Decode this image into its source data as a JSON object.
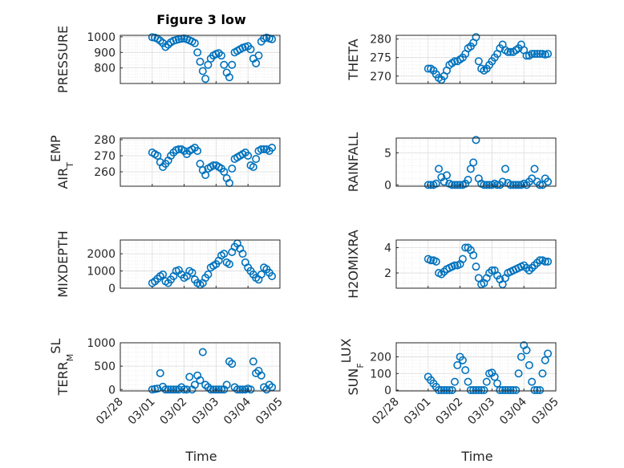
{
  "figure": {
    "title": "Figure 3 low",
    "xlabel": "Time"
  },
  "colors": {
    "marker": "#0072BD",
    "axis": "#262626",
    "grid": "#dcdcdc",
    "minorgrid": "#ececec"
  },
  "chart_data": [
    {
      "type": "scatter",
      "ylabel": "PRESSURE",
      "ylabel_sub": "",
      "ylabel_tail": "",
      "ylim": [
        700,
        1010
      ],
      "yticks": [
        800,
        900,
        1000
      ],
      "grid": true,
      "x": [
        "03/01 00:00",
        "03/01 02:00",
        "03/01 04:00",
        "03/01 06:00",
        "03/01 08:00",
        "03/01 10:00",
        "03/01 12:00",
        "03/01 14:00",
        "03/01 16:00",
        "03/01 18:00",
        "03/01 20:00",
        "03/01 22:00",
        "03/02 00:00",
        "03/02 02:00",
        "03/02 04:00",
        "03/02 06:00",
        "03/02 08:00",
        "03/02 10:00",
        "03/02 12:00",
        "03/02 14:00",
        "03/02 16:00",
        "03/02 18:00",
        "03/02 20:00",
        "03/02 22:00",
        "03/03 00:00",
        "03/03 02:00",
        "03/03 04:00",
        "03/03 06:00",
        "03/03 08:00",
        "03/03 10:00",
        "03/03 12:00",
        "03/03 14:00",
        "03/03 16:00",
        "03/03 18:00",
        "03/03 20:00",
        "03/03 22:00",
        "03/04 00:00",
        "03/04 02:00",
        "03/04 04:00",
        "03/04 06:00",
        "03/04 08:00",
        "03/04 10:00",
        "03/04 12:00",
        "03/04 14:00",
        "03/04 16:00",
        "03/04 18:00"
      ],
      "values": [
        998,
        995,
        988,
        975,
        960,
        935,
        950,
        965,
        975,
        980,
        985,
        988,
        990,
        985,
        978,
        970,
        960,
        900,
        840,
        780,
        730,
        820,
        860,
        880,
        890,
        895,
        880,
        820,
        770,
        740,
        820,
        900,
        910,
        920,
        930,
        935,
        940,
        920,
        860,
        830,
        880,
        970,
        990,
        995,
        990,
        985
      ]
    },
    {
      "type": "scatter",
      "ylabel": "THETA",
      "ylabel_sub": "",
      "ylabel_tail": "",
      "ylim": [
        268,
        281
      ],
      "yticks": [
        270,
        275,
        280
      ],
      "grid": true,
      "x": [
        "03/01 00:00",
        "03/01 02:00",
        "03/01 04:00",
        "03/01 06:00",
        "03/01 08:00",
        "03/01 10:00",
        "03/01 12:00",
        "03/01 14:00",
        "03/01 16:00",
        "03/01 18:00",
        "03/01 20:00",
        "03/01 22:00",
        "03/02 00:00",
        "03/02 02:00",
        "03/02 04:00",
        "03/02 06:00",
        "03/02 08:00",
        "03/02 10:00",
        "03/02 12:00",
        "03/02 14:00",
        "03/02 16:00",
        "03/02 18:00",
        "03/02 20:00",
        "03/02 22:00",
        "03/03 00:00",
        "03/03 02:00",
        "03/03 04:00",
        "03/03 06:00",
        "03/03 08:00",
        "03/03 10:00",
        "03/03 12:00",
        "03/03 14:00",
        "03/03 16:00",
        "03/03 18:00",
        "03/03 20:00",
        "03/03 22:00",
        "03/04 00:00",
        "03/04 02:00",
        "03/04 04:00",
        "03/04 06:00",
        "03/04 08:00",
        "03/04 10:00",
        "03/04 12:00",
        "03/04 14:00",
        "03/04 16:00",
        "03/04 18:00"
      ],
      "values": [
        272,
        272,
        271.5,
        270.5,
        269.5,
        269,
        270,
        271.5,
        273,
        273.5,
        274,
        274,
        274.5,
        275,
        276,
        277.5,
        278,
        279,
        280.5,
        274,
        272,
        271.5,
        272,
        273,
        274,
        275,
        276,
        277.5,
        278.5,
        277,
        276.5,
        276.5,
        276.5,
        277,
        277.5,
        278.5,
        277,
        275.5,
        275.5,
        276,
        276,
        276,
        276,
        276,
        275.8,
        276
      ]
    },
    {
      "type": "scatter",
      "ylabel": "AIR",
      "ylabel_sub": "T",
      "ylabel_tail": "EMP",
      "ylim": [
        251,
        281
      ],
      "yticks": [
        260,
        270,
        280
      ],
      "grid": true,
      "x": [
        "03/01 00:00",
        "03/01 02:00",
        "03/01 04:00",
        "03/01 06:00",
        "03/01 08:00",
        "03/01 10:00",
        "03/01 12:00",
        "03/01 14:00",
        "03/01 16:00",
        "03/01 18:00",
        "03/01 20:00",
        "03/01 22:00",
        "03/02 00:00",
        "03/02 02:00",
        "03/02 04:00",
        "03/02 06:00",
        "03/02 08:00",
        "03/02 10:00",
        "03/02 12:00",
        "03/02 14:00",
        "03/02 16:00",
        "03/02 18:00",
        "03/02 20:00",
        "03/02 22:00",
        "03/03 00:00",
        "03/03 02:00",
        "03/03 04:00",
        "03/03 06:00",
        "03/03 08:00",
        "03/03 10:00",
        "03/03 12:00",
        "03/03 14:00",
        "03/03 16:00",
        "03/03 18:00",
        "03/03 20:00",
        "03/03 22:00",
        "03/04 00:00",
        "03/04 02:00",
        "03/04 04:00",
        "03/04 06:00",
        "03/04 08:00",
        "03/04 10:00",
        "03/04 12:00",
        "03/04 14:00",
        "03/04 16:00",
        "03/04 18:00"
      ],
      "values": [
        272,
        271,
        270,
        266,
        263,
        265,
        267,
        270,
        272,
        273.5,
        274,
        274,
        273,
        271,
        273,
        274,
        275,
        273,
        265,
        261,
        258,
        262,
        263,
        264,
        264,
        263,
        262,
        260,
        256,
        253,
        262,
        268,
        269,
        270,
        271,
        272,
        270,
        264,
        263,
        268,
        273,
        274,
        274,
        274,
        273,
        275
      ]
    },
    {
      "type": "scatter",
      "ylabel": "RAINFALL",
      "ylabel_sub": "",
      "ylabel_tail": "",
      "ylim": [
        -0.2,
        7.3
      ],
      "yticks": [
        0,
        5
      ],
      "grid": true,
      "x": [
        "03/01 00:00",
        "03/01 02:00",
        "03/01 04:00",
        "03/01 06:00",
        "03/01 08:00",
        "03/01 10:00",
        "03/01 12:00",
        "03/01 14:00",
        "03/01 16:00",
        "03/01 18:00",
        "03/01 20:00",
        "03/01 22:00",
        "03/02 00:00",
        "03/02 02:00",
        "03/02 04:00",
        "03/02 06:00",
        "03/02 08:00",
        "03/02 10:00",
        "03/02 12:00",
        "03/02 14:00",
        "03/02 16:00",
        "03/02 18:00",
        "03/02 20:00",
        "03/02 22:00",
        "03/03 00:00",
        "03/03 02:00",
        "03/03 04:00",
        "03/03 06:00",
        "03/03 08:00",
        "03/03 10:00",
        "03/03 12:00",
        "03/03 14:00",
        "03/03 16:00",
        "03/03 18:00",
        "03/03 20:00",
        "03/03 22:00",
        "03/04 00:00",
        "03/04 02:00",
        "03/04 04:00",
        "03/04 06:00",
        "03/04 08:00",
        "03/04 10:00",
        "03/04 12:00",
        "03/04 14:00",
        "03/04 16:00",
        "03/04 18:00"
      ],
      "values": [
        0,
        0,
        0,
        0.2,
        2.5,
        1.2,
        0.5,
        1.5,
        0.2,
        0,
        0,
        0,
        0,
        0,
        0.2,
        0.8,
        2.5,
        3.5,
        7,
        1,
        0.2,
        0,
        0,
        0,
        0,
        0.2,
        0,
        0,
        0.5,
        2.5,
        0.3,
        0,
        0,
        0,
        0,
        0,
        0.2,
        0,
        0.5,
        1,
        2.5,
        0.5,
        0,
        0,
        1,
        0.5
      ]
    },
    {
      "type": "scatter",
      "ylabel": "MIXDEPTH",
      "ylabel_sub": "",
      "ylabel_tail": "",
      "ylim": [
        0,
        2800
      ],
      "yticks": [
        0,
        1000,
        2000
      ],
      "grid": true,
      "x": [
        "03/01 00:00",
        "03/01 02:00",
        "03/01 04:00",
        "03/01 06:00",
        "03/01 08:00",
        "03/01 10:00",
        "03/01 12:00",
        "03/01 14:00",
        "03/01 16:00",
        "03/01 18:00",
        "03/01 20:00",
        "03/01 22:00",
        "03/02 00:00",
        "03/02 02:00",
        "03/02 04:00",
        "03/02 06:00",
        "03/02 08:00",
        "03/02 10:00",
        "03/02 12:00",
        "03/02 14:00",
        "03/02 16:00",
        "03/02 18:00",
        "03/02 20:00",
        "03/02 22:00",
        "03/03 00:00",
        "03/03 02:00",
        "03/03 04:00",
        "03/03 06:00",
        "03/03 08:00",
        "03/03 10:00",
        "03/03 12:00",
        "03/03 14:00",
        "03/03 16:00",
        "03/03 18:00",
        "03/03 20:00",
        "03/03 22:00",
        "03/04 00:00",
        "03/04 02:00",
        "03/04 04:00",
        "03/04 06:00",
        "03/04 08:00",
        "03/04 10:00",
        "03/04 12:00",
        "03/04 14:00",
        "03/04 16:00",
        "03/04 18:00"
      ],
      "values": [
        300,
        400,
        550,
        700,
        800,
        400,
        300,
        500,
        700,
        1000,
        1050,
        800,
        600,
        700,
        1000,
        900,
        500,
        300,
        200,
        300,
        600,
        800,
        1200,
        1300,
        1400,
        1600,
        1900,
        2000,
        1500,
        1400,
        2100,
        2400,
        2600,
        2300,
        2000,
        1500,
        1200,
        1000,
        800,
        600,
        500,
        800,
        1200,
        1100,
        900,
        700
      ]
    },
    {
      "type": "scatter",
      "ylabel": "H2OMIXRA",
      "ylabel_sub": "",
      "ylabel_tail": "",
      "ylim": [
        0.8,
        4.6
      ],
      "yticks": [
        2,
        4
      ],
      "grid": true,
      "x": [
        "03/01 00:00",
        "03/01 02:00",
        "03/01 04:00",
        "03/01 06:00",
        "03/01 08:00",
        "03/01 10:00",
        "03/01 12:00",
        "03/01 14:00",
        "03/01 16:00",
        "03/01 18:00",
        "03/01 20:00",
        "03/01 22:00",
        "03/02 00:00",
        "03/02 02:00",
        "03/02 04:00",
        "03/02 06:00",
        "03/02 08:00",
        "03/02 10:00",
        "03/02 12:00",
        "03/02 14:00",
        "03/02 16:00",
        "03/02 18:00",
        "03/02 20:00",
        "03/02 22:00",
        "03/03 00:00",
        "03/03 02:00",
        "03/03 04:00",
        "03/03 06:00",
        "03/03 08:00",
        "03/03 10:00",
        "03/03 12:00",
        "03/03 14:00",
        "03/03 16:00",
        "03/03 18:00",
        "03/03 20:00",
        "03/03 22:00",
        "03/04 00:00",
        "03/04 02:00",
        "03/04 04:00",
        "03/04 06:00",
        "03/04 08:00",
        "03/04 10:00",
        "03/04 12:00",
        "03/04 14:00",
        "03/04 16:00",
        "03/04 18:00"
      ],
      "values": [
        3.1,
        3,
        3,
        2.9,
        2,
        1.9,
        2.1,
        2.3,
        2.4,
        2.5,
        2.6,
        2.6,
        2.7,
        3.1,
        4,
        4,
        3.8,
        3.4,
        2.5,
        1.6,
        1.1,
        1.2,
        1.6,
        2,
        2.2,
        2.2,
        1.8,
        1.5,
        1.1,
        1.6,
        2,
        2.1,
        2.2,
        2.3,
        2.4,
        2.5,
        2.6,
        2.4,
        2.2,
        2.4,
        2.6,
        2.8,
        3,
        3,
        2.9,
        2.9
      ]
    },
    {
      "type": "scatter",
      "ylabel": "TERR",
      "ylabel_sub": "M",
      "ylabel_tail": "SL",
      "ylim": [
        -30,
        1000
      ],
      "yticks": [
        0,
        500,
        1000
      ],
      "grid": true,
      "x": [
        "03/01 00:00",
        "03/01 02:00",
        "03/01 04:00",
        "03/01 06:00",
        "03/01 08:00",
        "03/01 10:00",
        "03/01 12:00",
        "03/01 14:00",
        "03/01 16:00",
        "03/01 18:00",
        "03/01 20:00",
        "03/01 22:00",
        "03/02 00:00",
        "03/02 02:00",
        "03/02 04:00",
        "03/02 06:00",
        "03/02 08:00",
        "03/02 10:00",
        "03/02 12:00",
        "03/02 14:00",
        "03/02 16:00",
        "03/02 18:00",
        "03/02 20:00",
        "03/02 22:00",
        "03/03 00:00",
        "03/03 02:00",
        "03/03 04:00",
        "03/03 06:00",
        "03/03 08:00",
        "03/03 10:00",
        "03/03 12:00",
        "03/03 14:00",
        "03/03 16:00",
        "03/03 18:00",
        "03/03 20:00",
        "03/03 22:00",
        "03/04 00:00",
        "03/04 02:00",
        "03/04 04:00",
        "03/04 06:00",
        "03/04 08:00",
        "03/04 10:00",
        "03/04 12:00",
        "03/04 14:00",
        "03/04 16:00",
        "03/04 18:00"
      ],
      "values": [
        0,
        10,
        20,
        350,
        60,
        0,
        0,
        0,
        0,
        0,
        0,
        50,
        0,
        0,
        270,
        0,
        100,
        300,
        200,
        800,
        100,
        50,
        0,
        0,
        0,
        0,
        0,
        0,
        100,
        600,
        550,
        50,
        0,
        0,
        0,
        0,
        20,
        0,
        600,
        350,
        400,
        300,
        50,
        0,
        100,
        50
      ]
    },
    {
      "type": "scatter",
      "ylabel": "SUN",
      "ylabel_sub": "F",
      "ylabel_tail": "LUX",
      "ylim": [
        -5,
        285
      ],
      "yticks": [
        0,
        100,
        200
      ],
      "grid": true,
      "x": [
        "03/01 00:00",
        "03/01 02:00",
        "03/01 04:00",
        "03/01 06:00",
        "03/01 08:00",
        "03/01 10:00",
        "03/01 12:00",
        "03/01 14:00",
        "03/01 16:00",
        "03/01 18:00",
        "03/01 20:00",
        "03/01 22:00",
        "03/02 00:00",
        "03/02 02:00",
        "03/02 04:00",
        "03/02 06:00",
        "03/02 08:00",
        "03/02 10:00",
        "03/02 12:00",
        "03/02 14:00",
        "03/02 16:00",
        "03/02 18:00",
        "03/02 20:00",
        "03/02 22:00",
        "03/03 00:00",
        "03/03 02:00",
        "03/03 04:00",
        "03/03 06:00",
        "03/03 08:00",
        "03/03 10:00",
        "03/03 12:00",
        "03/03 14:00",
        "03/03 16:00",
        "03/03 18:00",
        "03/03 20:00",
        "03/03 22:00",
        "03/04 00:00",
        "03/04 02:00",
        "03/04 04:00",
        "03/04 06:00",
        "03/04 08:00",
        "03/04 10:00",
        "03/04 12:00",
        "03/04 14:00",
        "03/04 16:00",
        "03/04 18:00"
      ],
      "values": [
        80,
        60,
        40,
        20,
        0,
        0,
        0,
        0,
        0,
        0,
        50,
        150,
        200,
        180,
        120,
        50,
        0,
        0,
        0,
        0,
        0,
        0,
        50,
        100,
        105,
        80,
        40,
        0,
        0,
        0,
        0,
        0,
        0,
        0,
        100,
        200,
        270,
        240,
        150,
        50,
        0,
        0,
        0,
        100,
        180,
        220
      ]
    }
  ],
  "xaxis": {
    "min": "02/28",
    "max": "03/05",
    "ticks": [
      "02/28",
      "03/01",
      "03/02",
      "03/03",
      "03/04",
      "03/05"
    ]
  }
}
